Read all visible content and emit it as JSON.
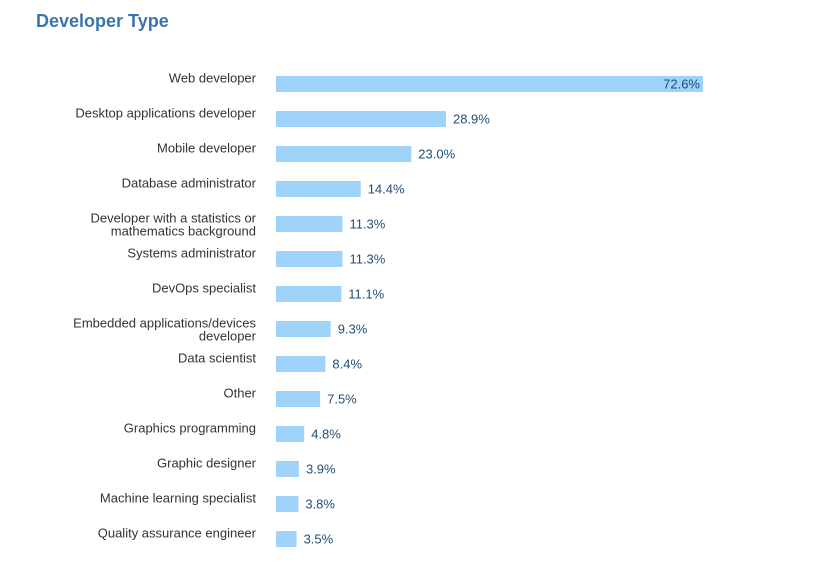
{
  "chart_data": {
    "type": "bar",
    "orientation": "horizontal",
    "title": "Developer Type",
    "xlabel": "",
    "ylabel": "",
    "grid": false,
    "legend": "none",
    "value_suffix": "%",
    "xlim": [
      0,
      72.6
    ],
    "bar_color": "#9fd3f9",
    "title_color": "#3a76ab",
    "label_color": "#1f4e79",
    "categories": [
      [
        "Web developer"
      ],
      [
        "Desktop applications developer"
      ],
      [
        "Mobile developer"
      ],
      [
        "Database administrator"
      ],
      [
        "Developer with a statistics or",
        "mathematics background"
      ],
      [
        "Systems administrator"
      ],
      [
        "DevOps specialist"
      ],
      [
        "Embedded applications/devices",
        "developer"
      ],
      [
        "Data scientist"
      ],
      [
        "Other"
      ],
      [
        "Graphics programming"
      ],
      [
        "Graphic designer"
      ],
      [
        "Machine learning specialist"
      ],
      [
        "Quality assurance engineer"
      ]
    ],
    "values": [
      72.6,
      28.9,
      23.0,
      14.4,
      11.3,
      11.3,
      11.1,
      9.3,
      8.4,
      7.5,
      4.8,
      3.9,
      3.8,
      3.5
    ],
    "value_labels": [
      "72.6%",
      "28.9%",
      "23.0%",
      "14.4%",
      "11.3%",
      "11.3%",
      "11.1%",
      "9.3%",
      "8.4%",
      "7.5%",
      "4.8%",
      "3.9%",
      "3.8%",
      "3.5%"
    ]
  }
}
